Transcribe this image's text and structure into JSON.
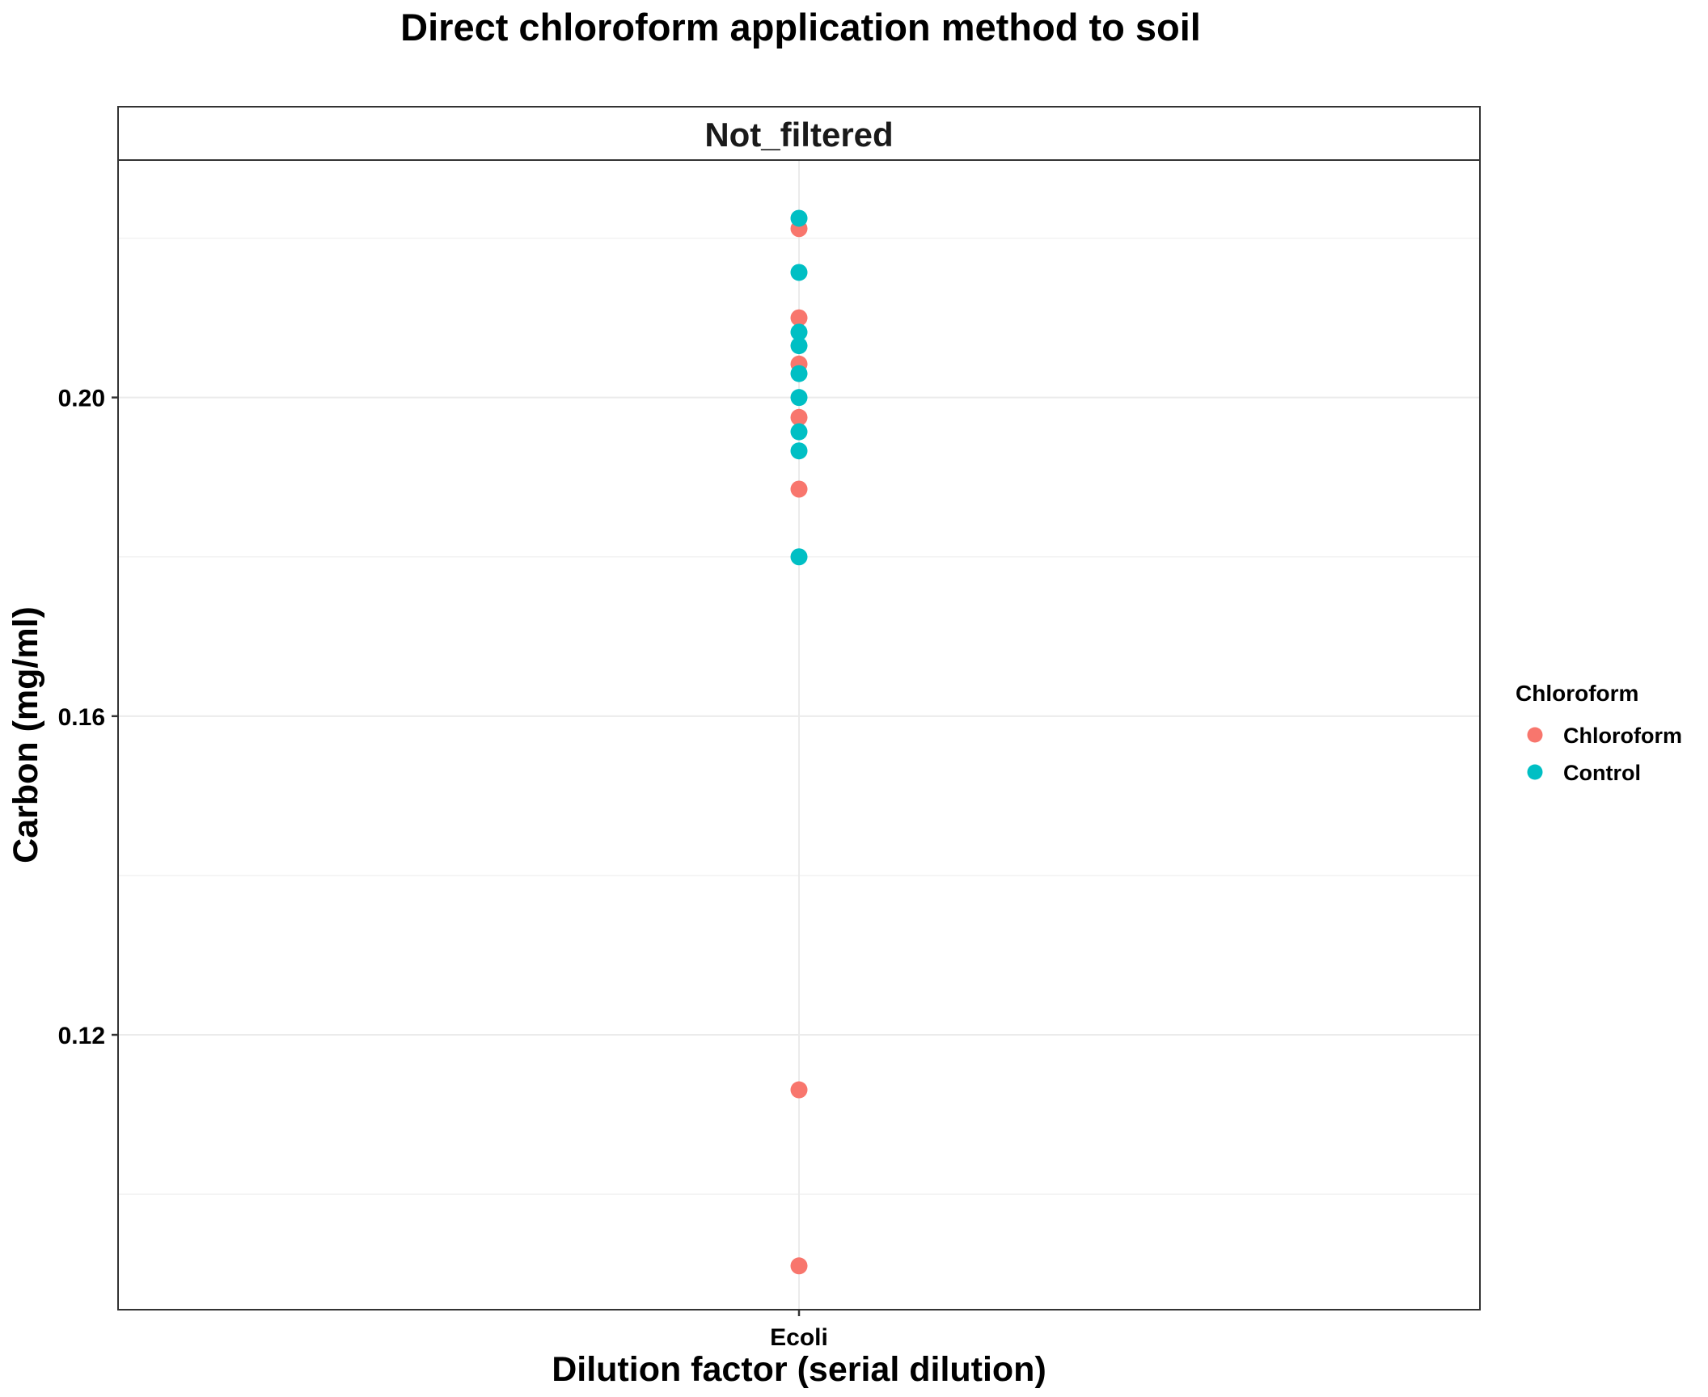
{
  "chart_data": {
    "type": "scatter",
    "title": "Direct chloroform application method to soil",
    "facet_label": "Not_filtered",
    "xlabel": "Dilution factor (serial dilution)",
    "ylabel": "Carbon (mg/ml)",
    "categories": [
      "Ecoli"
    ],
    "ylim": [
      0.0855,
      0.2298
    ],
    "yticks": [
      0.12,
      0.16,
      0.2
    ],
    "ytick_labels": [
      "0.12",
      "0.16",
      "0.20"
    ],
    "grid": true,
    "legend": {
      "title": "Chloroform",
      "position": "right",
      "entries": [
        "Chloroform",
        "Control"
      ]
    },
    "series": [
      {
        "name": "Chloroform",
        "color": "#F8766D",
        "points": [
          {
            "x": "Ecoli",
            "y": 0.2212
          },
          {
            "x": "Ecoli",
            "y": 0.21
          },
          {
            "x": "Ecoli",
            "y": 0.2042
          },
          {
            "x": "Ecoli",
            "y": 0.1975
          },
          {
            "x": "Ecoli",
            "y": 0.1885
          },
          {
            "x": "Ecoli",
            "y": 0.1131
          },
          {
            "x": "Ecoli",
            "y": 0.091
          }
        ]
      },
      {
        "name": "Control",
        "color": "#00BFC4",
        "points": [
          {
            "x": "Ecoli",
            "y": 0.2225
          },
          {
            "x": "Ecoli",
            "y": 0.2157
          },
          {
            "x": "Ecoli",
            "y": 0.2082
          },
          {
            "x": "Ecoli",
            "y": 0.2065
          },
          {
            "x": "Ecoli",
            "y": 0.203
          },
          {
            "x": "Ecoli",
            "y": 0.2
          },
          {
            "x": "Ecoli",
            "y": 0.1957
          },
          {
            "x": "Ecoli",
            "y": 0.1933
          },
          {
            "x": "Ecoli",
            "y": 0.18
          }
        ]
      }
    ]
  }
}
